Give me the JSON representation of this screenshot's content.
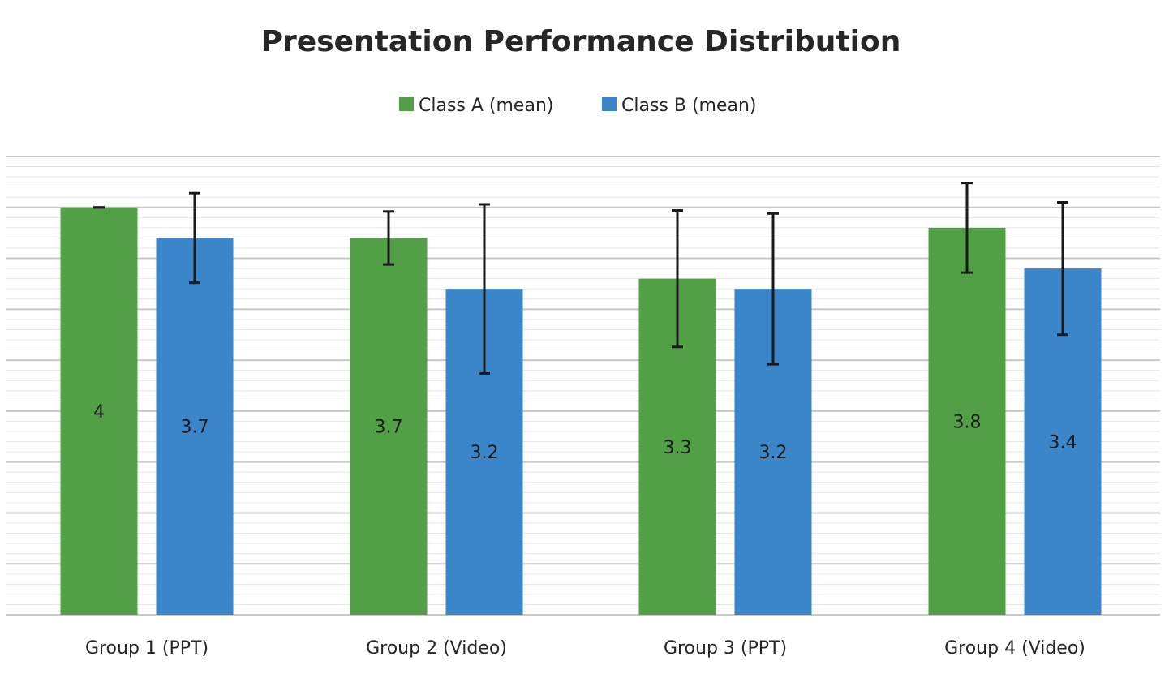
{
  "chart_data": {
    "type": "bar",
    "title": "Presentation Performance Distribution",
    "categories": [
      "Group 1 (PPT)",
      "Group 2 (Video)",
      "Group 3 (PPT)",
      "Group 4 (Video)"
    ],
    "series": [
      {
        "name": "Class A (mean)",
        "color": "#52a046",
        "values": [
          4,
          3.7,
          3.3,
          3.8
        ],
        "error": [
          0.0,
          0.26,
          0.67,
          0.44
        ],
        "labels": [
          "4",
          "3.7",
          "3.3",
          "3.8"
        ]
      },
      {
        "name": "Class B (mean)",
        "color": "#3a86c8",
        "values": [
          3.7,
          3.2,
          3.2,
          3.4
        ],
        "error": [
          0.44,
          0.83,
          0.74,
          0.65
        ],
        "labels": [
          "3.7",
          "3.2",
          "3.2",
          "3.4"
        ]
      }
    ],
    "ylim": [
      0,
      4.5
    ],
    "grid": true,
    "legend_position": "top-center"
  }
}
